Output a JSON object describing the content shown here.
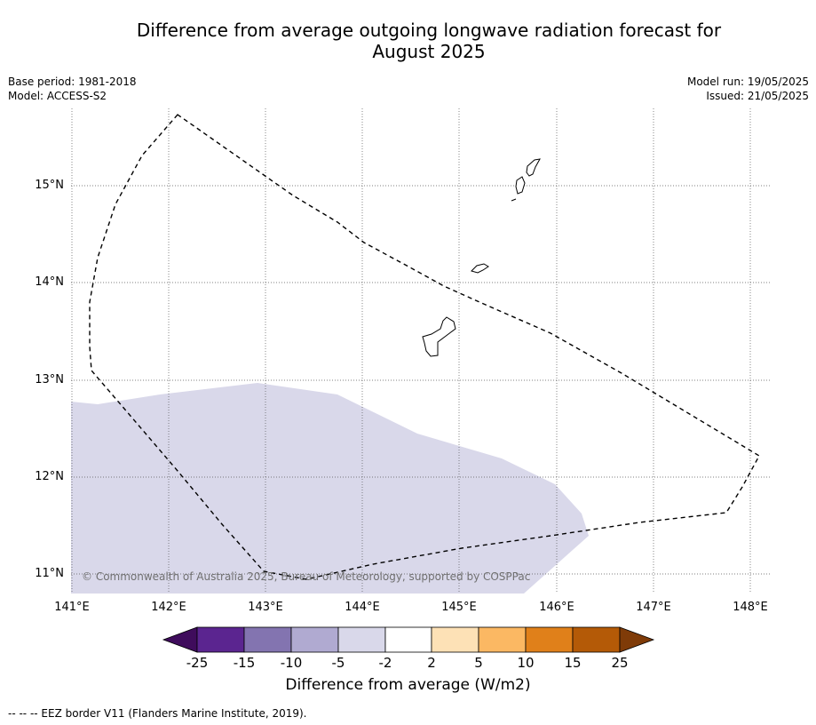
{
  "title_line1": "Difference from average outgoing longwave radiation forecast for",
  "title_line2": "August 2025",
  "base_period": "Base period: 1981-2018",
  "model": "Model: ACCESS-S2",
  "model_run": "Model run: 19/05/2025",
  "issued": "Issued: 21/05/2025",
  "map": {
    "lon_labels": [
      "141°E",
      "142°E",
      "143°E",
      "144°E",
      "145°E",
      "146°E",
      "147°E",
      "148°E"
    ],
    "lat_labels": [
      "15°N",
      "14°N",
      "13°N",
      "12°N",
      "11°N"
    ],
    "anomaly_fill_color": "#d9d8ea",
    "anomaly_category": "-5 to -2",
    "copyright": "© Commonwealth of Australia 2025, Bureau of Meteorology, supported by COSPPac"
  },
  "colorbar": {
    "ticks": [
      "-25",
      "-15",
      "-10",
      "-5",
      "-2",
      "2",
      "5",
      "10",
      "15",
      "25"
    ],
    "colors": [
      "#3f0c5c",
      "#5b2590",
      "#8374b0",
      "#b0aad1",
      "#d9d8ea",
      "#ffffff",
      "#fde1b6",
      "#fbb863",
      "#e0801a",
      "#b45a07",
      "#7f3b08"
    ],
    "label": "Difference from average (W/m2)"
  },
  "footnote": "--  --  -- EEZ border V11 (Flanders Marine Institute, 2019)."
}
